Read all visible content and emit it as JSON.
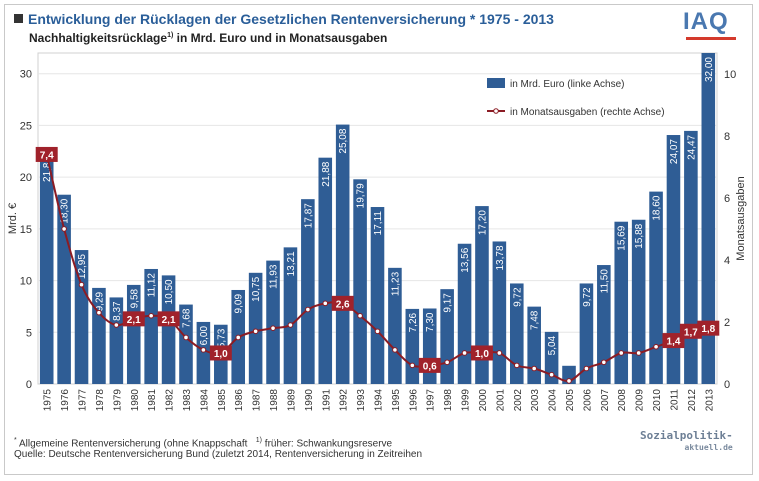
{
  "header": {
    "title": "Entwicklung der Rücklagen der Gesetzlichen Rentenversicherung * 1975 - 2013",
    "subtitle_main": "Nachhaltigkeitsrücklage",
    "subtitle_sup": "1)",
    "subtitle_rest": " in Mrd. Euro und in Monatsausgaben",
    "logo": "IAQ"
  },
  "footer": {
    "note1_star": "*",
    "note1_text": " Allgemeine Rentenversicherung (ohne Knappschaft",
    "note1_sup": "1)",
    "note1_rest": " früher: Schwankungsreserve",
    "note2": "Quelle: Deutsche Rentenversicherung Bund (zuletzt 2014, Rentenversicherung in Zeitreihen",
    "watermark_main": "Sozialpolitik-",
    "watermark_sub": "aktuell.de"
  },
  "colors": {
    "bar": "#2f5d95",
    "line": "#8b1c24",
    "label_box": "#a0222b",
    "title": "#2a5e99",
    "grid": "#e6e6e6"
  },
  "chart_data": {
    "type": "bar",
    "categories": [
      "1975",
      "1976",
      "1977",
      "1978",
      "1979",
      "1980",
      "1981",
      "1982",
      "1983",
      "1984",
      "1985",
      "1986",
      "1987",
      "1988",
      "1989",
      "1990",
      "1991",
      "1992",
      "1993",
      "1994",
      "1995",
      "1996",
      "1997",
      "1998",
      "1999",
      "2000",
      "2001",
      "2002",
      "2003",
      "2004",
      "2005",
      "2006",
      "2007",
      "2008",
      "2009",
      "2010",
      "2011",
      "2012",
      "2013"
    ],
    "series": [
      {
        "name": "in Mrd. Euro (linke Achse)",
        "axis": "left",
        "kind": "bar",
        "values": [
          21.8,
          18.3,
          12.95,
          9.29,
          8.37,
          9.58,
          11.12,
          10.5,
          7.68,
          6.0,
          5.73,
          9.09,
          10.75,
          11.93,
          13.21,
          17.87,
          21.88,
          25.08,
          19.79,
          17.11,
          11.23,
          7.26,
          7.3,
          9.17,
          13.56,
          17.2,
          13.78,
          9.72,
          7.48,
          5.04,
          1.76,
          9.72,
          11.5,
          15.69,
          15.88,
          18.6,
          24.07,
          24.47,
          32.0
        ],
        "labels": [
          "21,8",
          "18,30",
          "12,95",
          "9,29",
          "8,37",
          "9,58",
          "11,12",
          "10,50",
          "7,68",
          "6,00",
          "5,73",
          "9,09",
          "10,75",
          "11,93",
          "13,21",
          "17,87",
          "21,88",
          "25,08",
          "19,79",
          "17,11",
          "11,23",
          "7,26",
          "7,30",
          "9,17",
          "13,56",
          "17,20",
          "13,78",
          "9,72",
          "7,48",
          "5,04",
          "",
          "9,72",
          "11,50",
          "15,69",
          "15,88",
          "18,60",
          "24,07",
          "24,47",
          "32,00"
        ]
      },
      {
        "name": "in Monatsausgaben (rechte Achse)",
        "axis": "right",
        "kind": "line",
        "values": [
          7.4,
          5.0,
          3.2,
          2.3,
          1.9,
          2.1,
          2.2,
          2.1,
          1.5,
          1.1,
          1.0,
          1.5,
          1.7,
          1.8,
          1.9,
          2.4,
          2.6,
          2.6,
          2.2,
          1.7,
          1.1,
          0.6,
          0.6,
          0.7,
          1.0,
          1.0,
          1.0,
          0.6,
          0.5,
          0.3,
          0.1,
          0.5,
          0.7,
          1.0,
          1.0,
          1.2,
          1.4,
          1.7,
          1.8
        ],
        "boxed_labels": [
          {
            "index": 0,
            "text": "7,4"
          },
          {
            "index": 5,
            "text": "2,1"
          },
          {
            "index": 7,
            "text": "2,1"
          },
          {
            "index": 10,
            "text": "1,0"
          },
          {
            "index": 17,
            "text": "2,6"
          },
          {
            "index": 22,
            "text": "0,6"
          },
          {
            "index": 25,
            "text": "1,0"
          },
          {
            "index": 36,
            "text": "1,4"
          },
          {
            "index": 37,
            "text": "1,7"
          },
          {
            "index": 38,
            "text": "1,8"
          }
        ]
      }
    ],
    "ylabel": "Mrd. €",
    "y2label": "Monatsausgaben",
    "ylim": [
      0,
      32
    ],
    "y2lim": [
      0,
      10.67
    ],
    "yticks": [
      0,
      5,
      10,
      15,
      20,
      25,
      30
    ],
    "y2ticks": [
      0,
      2,
      4,
      6,
      8,
      10
    ],
    "grid": true,
    "legend_position": "top-right"
  }
}
